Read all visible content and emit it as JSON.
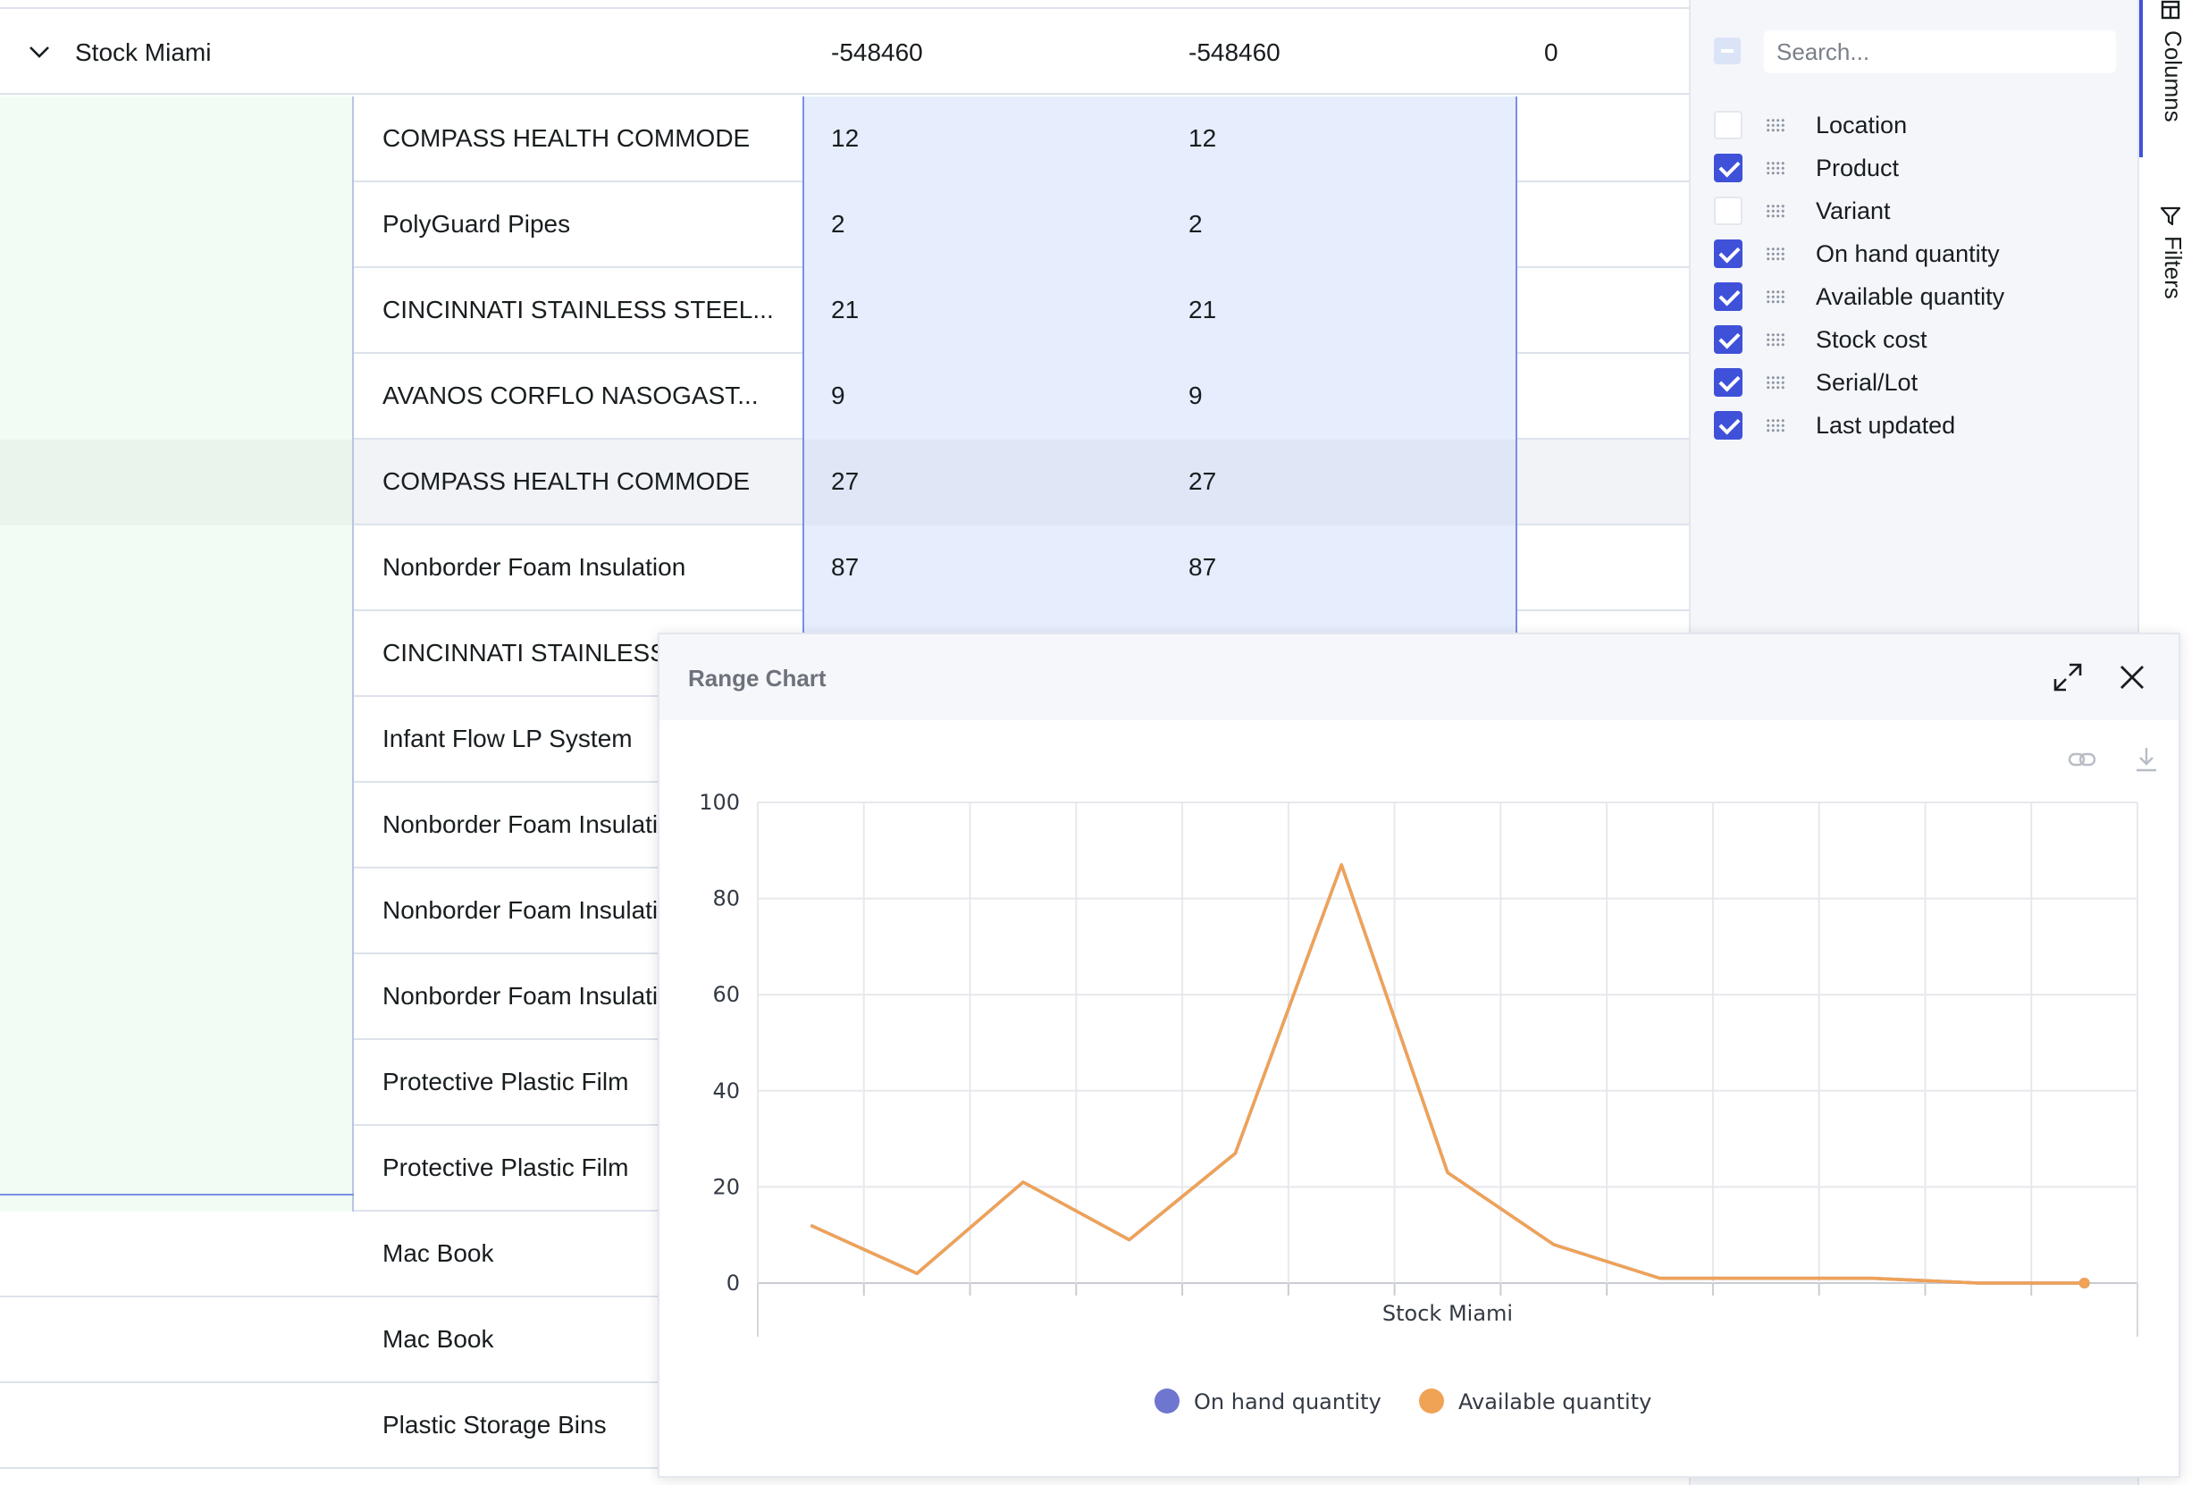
{
  "grid": {
    "group": {
      "label": "Stock Miami",
      "on_hand": "-548460",
      "available": "-548460",
      "stock_cost": "0"
    },
    "rows": [
      {
        "product": "COMPASS HEALTH COMMODE",
        "on_hand": "12",
        "available": "12",
        "range": true,
        "hover": false
      },
      {
        "product": "PolyGuard Pipes",
        "on_hand": "2",
        "available": "2",
        "range": true,
        "hover": false
      },
      {
        "product": "CINCINNATI STAINLESS STEEL...",
        "on_hand": "21",
        "available": "21",
        "range": true,
        "hover": false
      },
      {
        "product": "AVANOS CORFLO NASOGAST...",
        "on_hand": "9",
        "available": "9",
        "range": true,
        "hover": false
      },
      {
        "product": "COMPASS HEALTH COMMODE",
        "on_hand": "27",
        "available": "27",
        "range": true,
        "hover": true
      },
      {
        "product": "Nonborder Foam Insulation",
        "on_hand": "87",
        "available": "87",
        "range": true,
        "hover": false
      },
      {
        "product": "CINCINNATI STAINLESS STEEL...",
        "on_hand": "23",
        "available": "23",
        "range": true,
        "hover": false
      },
      {
        "product": "Infant Flow LP System",
        "on_hand": "",
        "available": "",
        "range": false,
        "hover": false
      },
      {
        "product": "Nonborder Foam Insulation",
        "on_hand": "",
        "available": "",
        "range": false,
        "hover": false
      },
      {
        "product": "Nonborder Foam Insulation",
        "on_hand": "",
        "available": "",
        "range": false,
        "hover": false
      },
      {
        "product": "Nonborder Foam Insulation",
        "on_hand": "",
        "available": "",
        "range": false,
        "hover": false
      },
      {
        "product": "Protective Plastic Film",
        "on_hand": "",
        "available": "",
        "range": false,
        "hover": false
      },
      {
        "product": "Protective Plastic Film",
        "on_hand": "",
        "available": "",
        "range": false,
        "hover": false
      },
      {
        "product": "Mac Book",
        "on_hand": "",
        "available": "",
        "range": false,
        "hover": false,
        "plain": true
      },
      {
        "product": "Mac Book",
        "on_hand": "",
        "available": "",
        "range": false,
        "hover": false,
        "plain": true
      },
      {
        "product": "Plastic Storage Bins",
        "on_hand": "",
        "available": "",
        "range": false,
        "hover": false,
        "plain": true
      }
    ]
  },
  "columns_panel": {
    "search_placeholder": "Search...",
    "columns": [
      {
        "label": "Location",
        "checked": false
      },
      {
        "label": "Product",
        "checked": true
      },
      {
        "label": "Variant",
        "checked": false
      },
      {
        "label": "On hand quantity",
        "checked": true
      },
      {
        "label": "Available quantity",
        "checked": true
      },
      {
        "label": "Stock cost",
        "checked": true
      },
      {
        "label": "Serial/Lot",
        "checked": true
      },
      {
        "label": "Last updated",
        "checked": true
      }
    ]
  },
  "side_tabs": {
    "columns": "Columns",
    "filters": "Filters"
  },
  "chart_dialog": {
    "title": "Range Chart",
    "icons": {
      "maximize": "maximize-icon",
      "close": "close-icon",
      "link": "link-icon",
      "download": "download-icon"
    }
  },
  "chart_data": {
    "type": "line",
    "xlabel": "Stock Miami",
    "ylim": [
      0,
      100
    ],
    "yticks": [
      0,
      20,
      40,
      60,
      80,
      100
    ],
    "grid": true,
    "legend_position": "bottom",
    "series": [
      {
        "name": "On hand quantity",
        "color": "#6e76d0",
        "values": [
          12,
          2,
          21,
          9,
          27,
          87,
          23,
          8,
          1,
          1,
          1,
          0,
          0
        ]
      },
      {
        "name": "Available quantity",
        "color": "#f0a255",
        "values": [
          12,
          2,
          21,
          9,
          27,
          87,
          23,
          8,
          1,
          1,
          1,
          0,
          0
        ]
      }
    ]
  },
  "colors": {
    "accent": "#3f51d9",
    "line": "#f0a255",
    "legend_on_hand": "#6e76d0"
  }
}
